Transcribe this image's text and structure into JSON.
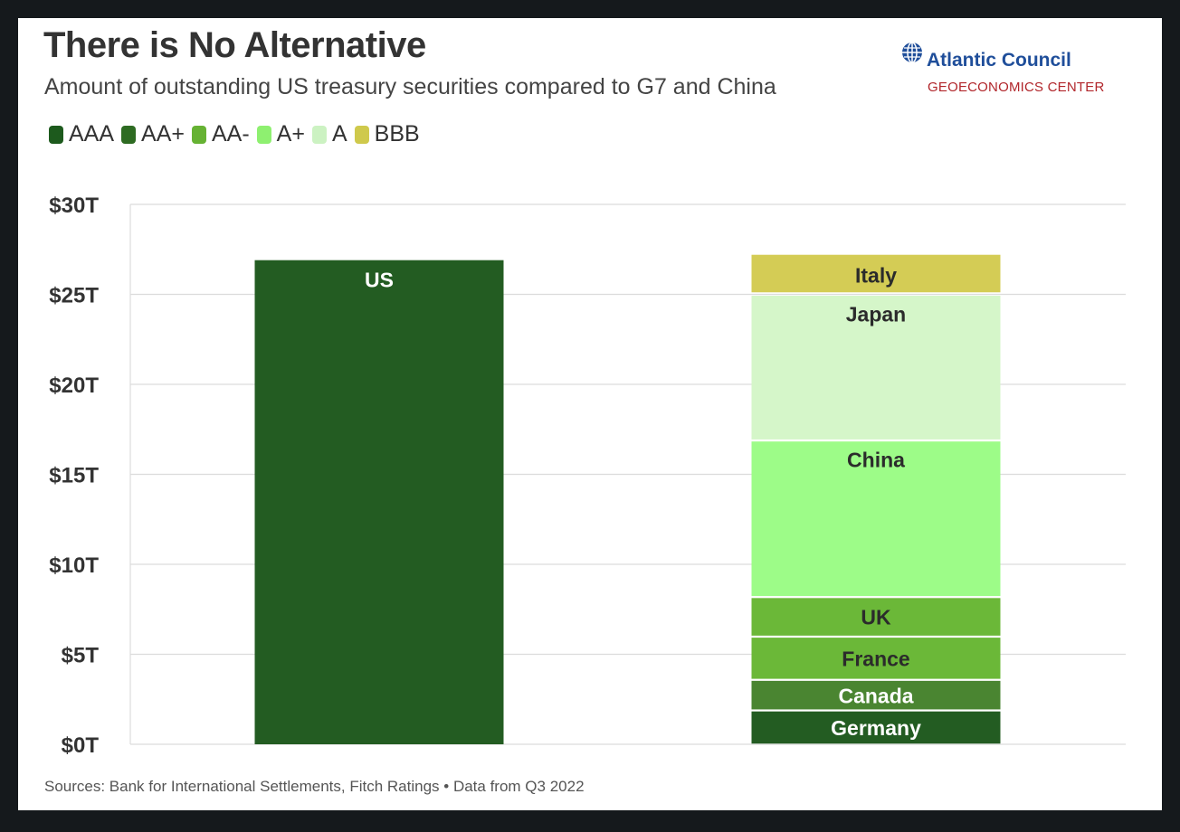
{
  "header": {
    "title": "There is No Alternative",
    "subtitle": "Amount of outstanding US treasury securities compared to G7 and China"
  },
  "brand": {
    "name": "Atlantic Council",
    "sub": "GEOECONOMICS CENTER",
    "logo_icon": "globe-icon"
  },
  "legend": [
    {
      "label": "AAA",
      "color": "#1d5a1d"
    },
    {
      "label": "AA+",
      "color": "#2e6b22"
    },
    {
      "label": "AA-",
      "color": "#66b233"
    },
    {
      "label": "A+",
      "color": "#8ef070"
    },
    {
      "label": "A",
      "color": "#ccf2c2"
    },
    {
      "label": "BBB",
      "color": "#cfc94c"
    }
  ],
  "chart_data": {
    "type": "bar",
    "stacked": true,
    "yticks": [
      "$0T",
      "$5T",
      "$10T",
      "$15T",
      "$20T",
      "$25T",
      "$30T"
    ],
    "ylim": [
      0,
      30
    ],
    "grid": true,
    "legend_position": "top-left",
    "bars": [
      {
        "segments": [
          {
            "label": "US",
            "rating": "AAA",
            "value": 26.9,
            "color": "#235c22",
            "text_color": "#ffffff"
          }
        ]
      },
      {
        "segments": [
          {
            "label": "Germany",
            "rating": "AAA",
            "value": 1.9,
            "color": "#235c22",
            "text_color": "#ffffff"
          },
          {
            "label": "Canada",
            "rating": "AA+",
            "value": 1.7,
            "color": "#4a8531",
            "text_color": "#ffffff"
          },
          {
            "label": "France",
            "rating": "AA-",
            "value": 2.4,
            "color": "#6bb838",
            "text_color": "#2b2b2b"
          },
          {
            "label": "UK",
            "rating": "AA-",
            "value": 2.2,
            "color": "#6bb838",
            "text_color": "#2b2b2b"
          },
          {
            "label": "China",
            "rating": "A+",
            "value": 8.7,
            "color": "#9dfc88",
            "text_color": "#2b2b2b"
          },
          {
            "label": "Japan",
            "rating": "A",
            "value": 8.1,
            "color": "#d5f6c9",
            "text_color": "#2b2b2b"
          },
          {
            "label": "Italy",
            "rating": "BBB",
            "value": 2.2,
            "color": "#d4cc55",
            "text_color": "#2b2b2b"
          }
        ]
      }
    ]
  },
  "source": "Sources: Bank for International Settlements, Fitch Ratings • Data from Q3 2022"
}
